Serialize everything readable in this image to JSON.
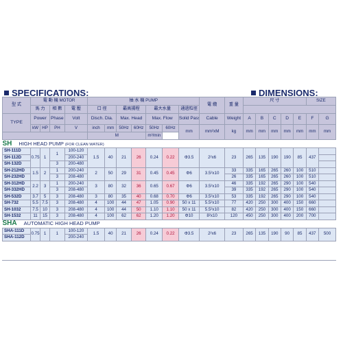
{
  "headings": {
    "specifications": "SPECIFICATIONS:",
    "dimensions": "DIMENSIONS:"
  },
  "header": {
    "type_zh": "型 式",
    "motor": "電 動 機 MOTOR",
    "pump": "抽 水 機 PUMP",
    "cable_zh": "電 纜",
    "weight_zh": "重 量",
    "size_zh": "尺 寸",
    "size": "SIZE",
    "power_zh": "馬 力",
    "phase_zh": "相 數",
    "volt_zh": "電 壓",
    "dia_zh": "口 徑",
    "head_zh": "最高揚程",
    "flow_zh": "最大水量",
    "passage_zh": "通過粒徑",
    "type": "TYPE",
    "power": "Power",
    "phase": "Phase",
    "volt": "Volt",
    "disch": "Disch. Dia.",
    "max_head": "Max. Head",
    "max_flow": "Max. Flow",
    "solid": "Solid Passage",
    "cable": "Cable",
    "weight": "Weight",
    "dims": [
      "A",
      "B",
      "C",
      "D",
      "E",
      "F",
      "G"
    ],
    "hz50": "50Hz",
    "hz60": "60Hz",
    "u_kw": "kW",
    "u_hp": "HP",
    "u_ph": "PH",
    "u_v": "V",
    "u_inch": "inch",
    "u_mm": "mm",
    "u_m": "M",
    "u_flow": "m³/min",
    "u_solid": "mm",
    "u_cable": "mm²xM",
    "u_kg": "kg",
    "u_dims": [
      "mm",
      "mm",
      "mm",
      "mm",
      "mm",
      "mm",
      "mm"
    ]
  },
  "sections": [
    {
      "code": "SH",
      "title": "HIGH HEAD PUMP",
      "note": "(FOR CLEAN WATER)",
      "rows": [
        [
          "SH-111D",
          "0.75",
          "1",
          "1",
          "100-120",
          "1.5",
          "40",
          "21",
          "26",
          "0.24",
          "0.22",
          "Φ3.5",
          "2²x6",
          "23",
          "265",
          "135",
          "190",
          "190",
          "85",
          "437",
          ""
        ],
        [
          "SH-112D",
          "",
          "",
          "",
          "200-240",
          "",
          "",
          "",
          "",
          "",
          "",
          "",
          "",
          "",
          "",
          "",
          "",
          "",
          "",
          "",
          ""
        ],
        [
          "SH-132D",
          "",
          "",
          "3",
          "200-480",
          "",
          "",
          "",
          "",
          "",
          "",
          "",
          "",
          "",
          "",
          "",
          "",
          "",
          "",
          "",
          ""
        ],
        [
          "SH-212HD",
          "1.5",
          "2",
          "1",
          "200-240",
          "2",
          "50",
          "29",
          "31",
          "0.45",
          "0.45",
          "Φ6",
          "3.5²x10",
          "33",
          "335",
          "165",
          "265",
          "260",
          "100",
          "510",
          ""
        ],
        [
          "SH-232HD",
          "",
          "",
          "3",
          "208-480",
          "",
          "",
          "",
          "",
          "",
          "",
          "",
          "",
          "26",
          "335",
          "165",
          "265",
          "260",
          "100",
          "510",
          ""
        ],
        [
          "SH-312HD",
          "2.2",
          "3",
          "1",
          "200-240",
          "3",
          "80",
          "32",
          "36",
          "0.65",
          "0.67",
          "Φ6",
          "3.5²x10",
          "46",
          "335",
          "192",
          "265",
          "290",
          "100",
          "540",
          ""
        ],
        [
          "SH-332HD",
          "",
          "",
          "3",
          "208-480",
          "",
          "",
          "",
          "",
          "",
          "",
          "",
          "",
          "39",
          "335",
          "192",
          "265",
          "290",
          "100",
          "540",
          ""
        ],
        [
          "SH-532D",
          "3.7",
          "5",
          "3",
          "208-480",
          "3",
          "80",
          "35",
          "40",
          "0.68",
          "0.70",
          "Φ6",
          "3.5²x10",
          "53",
          "335",
          "192",
          "265",
          "290",
          "100",
          "540",
          ""
        ],
        [
          "SH-732",
          "5.5",
          "7.5",
          "3",
          "208-480",
          "4",
          "100",
          "44",
          "47",
          "1.05",
          "0.90",
          "50 x 11",
          "5.5²x10",
          "77",
          "420",
          "250",
          "300",
          "400",
          "150",
          "660",
          ""
        ],
        [
          "SH-1032",
          "7.5",
          "10",
          "3",
          "208-480",
          "4",
          "100",
          "44",
          "50",
          "1.10",
          "1.10",
          "50 x 11",
          "5.5²x10",
          "82",
          "420",
          "250",
          "300",
          "400",
          "150",
          "660",
          ""
        ],
        [
          "SH-1532",
          "11",
          "15",
          "3",
          "208-480",
          "4",
          "100",
          "62",
          "62",
          "1.20",
          "1.20",
          "Φ10",
          "8²x10",
          "120",
          "450",
          "250",
          "300",
          "400",
          "200",
          "700",
          ""
        ]
      ]
    },
    {
      "code": "SHA",
      "title": "AUTOMATIC HIGH HEAD PUMP",
      "note": "",
      "rows": [
        [
          "SHA-111D",
          "0.75",
          "1",
          "1",
          "100-120",
          "1.5",
          "40",
          "21",
          "26",
          "0.24",
          "0.22",
          "Φ3.5",
          "2²x6",
          "23",
          "265",
          "135",
          "190",
          "90",
          "85",
          "437",
          "500"
        ],
        [
          "SHA-112D",
          "",
          "",
          "",
          "200-240",
          "",
          "",
          "",
          "",
          "",
          "",
          "",
          "",
          "",
          "",
          "",
          "",
          "",
          "",
          "",
          ""
        ]
      ]
    }
  ],
  "colors": {
    "header_bg": "#c7c5dc",
    "row_bg": "#dde6f4",
    "pink_bg": "#f6cbd6",
    "text": "#1a2a6b",
    "section_code": "#1a7a4a"
  }
}
